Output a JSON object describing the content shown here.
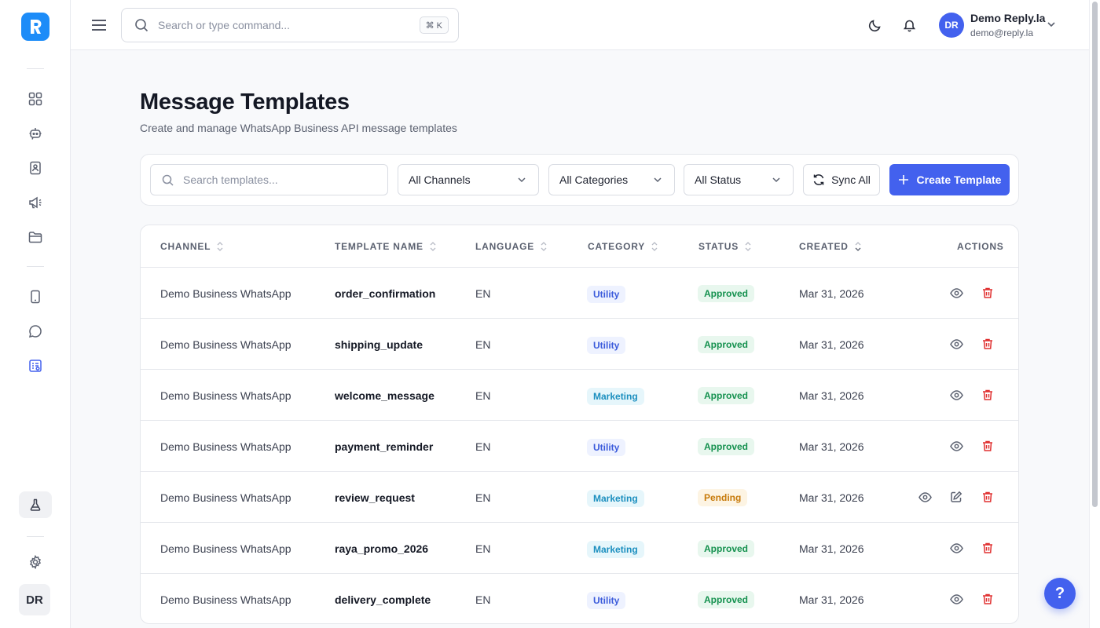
{
  "header": {
    "search_placeholder": "Search or type command...",
    "shortcut": "⌘ K",
    "user": {
      "initials": "DR",
      "name": "Demo Reply.la",
      "email": "demo@reply.la"
    }
  },
  "sidebar": {
    "avatar_initials": "DR",
    "icons": [
      "dashboard-icon",
      "bot-icon",
      "contacts-icon",
      "megaphone-icon",
      "folder-icon",
      "device-icon",
      "chat-icon",
      "templates-icon",
      "flask-icon",
      "settings-icon"
    ]
  },
  "page": {
    "title": "Message Templates",
    "subtitle": "Create and manage WhatsApp Business API message templates"
  },
  "toolbar": {
    "search_placeholder": "Search templates...",
    "channel_filter": "All Channels",
    "category_filter": "All Categories",
    "status_filter": "All Status",
    "sync_label": "Sync All",
    "create_label": "Create Template"
  },
  "table": {
    "columns": {
      "channel": "CHANNEL",
      "name": "TEMPLATE NAME",
      "language": "LANGUAGE",
      "category": "CATEGORY",
      "status": "STATUS",
      "created": "CREATED",
      "actions": "ACTIONS"
    },
    "rows": [
      {
        "channel": "Demo Business WhatsApp",
        "name": "order_confirmation",
        "language": "EN",
        "category": "Utility",
        "status": "Approved",
        "created": "Mar 31, 2026"
      },
      {
        "channel": "Demo Business WhatsApp",
        "name": "shipping_update",
        "language": "EN",
        "category": "Utility",
        "status": "Approved",
        "created": "Mar 31, 2026"
      },
      {
        "channel": "Demo Business WhatsApp",
        "name": "welcome_message",
        "language": "EN",
        "category": "Marketing",
        "status": "Approved",
        "created": "Mar 31, 2026"
      },
      {
        "channel": "Demo Business WhatsApp",
        "name": "payment_reminder",
        "language": "EN",
        "category": "Utility",
        "status": "Approved",
        "created": "Mar 31, 2026"
      },
      {
        "channel": "Demo Business WhatsApp",
        "name": "review_request",
        "language": "EN",
        "category": "Marketing",
        "status": "Pending",
        "created": "Mar 31, 2026"
      },
      {
        "channel": "Demo Business WhatsApp",
        "name": "raya_promo_2026",
        "language": "EN",
        "category": "Marketing",
        "status": "Approved",
        "created": "Mar 31, 2026"
      },
      {
        "channel": "Demo Business WhatsApp",
        "name": "delivery_complete",
        "language": "EN",
        "category": "Utility",
        "status": "Approved",
        "created": "Mar 31, 2026"
      }
    ]
  },
  "help_label": "?",
  "colors": {
    "accent": "#4361ee",
    "logo": "#1d8cf8",
    "approved": "#15914f",
    "pending": "#c77a0a",
    "delete": "#e03131"
  }
}
